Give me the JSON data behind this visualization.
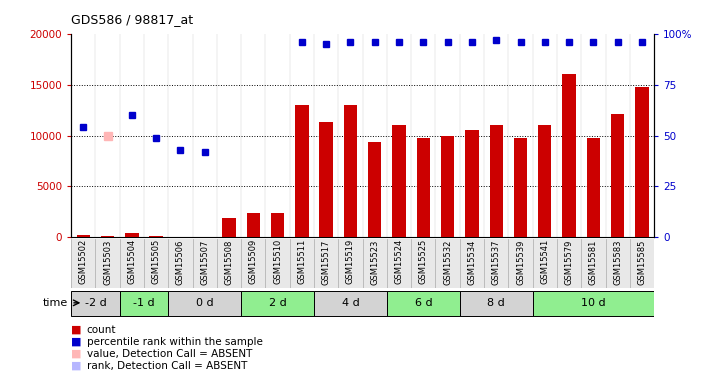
{
  "title": "GDS586 / 98817_at",
  "samples": [
    "GSM15502",
    "GSM15503",
    "GSM15504",
    "GSM15505",
    "GSM15506",
    "GSM15507",
    "GSM15508",
    "GSM15509",
    "GSM15510",
    "GSM15511",
    "GSM15517",
    "GSM15519",
    "GSM15523",
    "GSM15524",
    "GSM15525",
    "GSM15532",
    "GSM15534",
    "GSM15537",
    "GSM15539",
    "GSM15541",
    "GSM15579",
    "GSM15581",
    "GSM15583",
    "GSM15585"
  ],
  "counts": [
    200,
    100,
    400,
    150,
    50,
    50,
    1900,
    2400,
    2400,
    13000,
    11300,
    13000,
    9400,
    11000,
    9800,
    10000,
    10500,
    11000,
    9800,
    11000,
    16000,
    9800,
    12100,
    14800
  ],
  "ranks": [
    10800,
    null,
    12000,
    9800,
    8600,
    8400,
    null,
    null,
    null,
    19200,
    19000,
    19200,
    19200,
    19200,
    19200,
    19200,
    19200,
    19400,
    19200,
    19200,
    19200,
    19200,
    19200,
    19200
  ],
  "absent_value": [
    null,
    10000,
    null,
    null,
    null,
    null,
    null,
    null,
    null,
    null,
    null,
    null,
    null,
    null,
    null,
    null,
    null,
    null,
    null,
    null,
    null,
    null,
    null,
    null
  ],
  "absent_rank": [
    null,
    null,
    null,
    null,
    null,
    null,
    null,
    null,
    null,
    null,
    null,
    null,
    null,
    null,
    null,
    null,
    null,
    null,
    null,
    null,
    null,
    null,
    null,
    null
  ],
  "time_groups": [
    {
      "label": "-2 d",
      "indices": [
        0,
        1
      ],
      "color": "#d3d3d3"
    },
    {
      "label": "-1 d",
      "indices": [
        2,
        3
      ],
      "color": "#90ee90"
    },
    {
      "label": "0 d",
      "indices": [
        4,
        5,
        6
      ],
      "color": "#d3d3d3"
    },
    {
      "label": "2 d",
      "indices": [
        7,
        8,
        9
      ],
      "color": "#90ee90"
    },
    {
      "label": "4 d",
      "indices": [
        10,
        11,
        12
      ],
      "color": "#d3d3d3"
    },
    {
      "label": "6 d",
      "indices": [
        13,
        14,
        15
      ],
      "color": "#90ee90"
    },
    {
      "label": "8 d",
      "indices": [
        16,
        17,
        18
      ],
      "color": "#d3d3d3"
    },
    {
      "label": "10 d",
      "indices": [
        19,
        20,
        21,
        22,
        23
      ],
      "color": "#90ee90"
    }
  ],
  "ylim": [
    0,
    20000
  ],
  "yticks": [
    0,
    5000,
    10000,
    15000,
    20000
  ],
  "ytick_labels_left": [
    "0",
    "5000",
    "10000",
    "15000",
    "20000"
  ],
  "ytick_labels_right": [
    "0",
    "25",
    "50",
    "75",
    "100%"
  ],
  "bar_color": "#cc0000",
  "rank_color": "#0000cc",
  "absent_value_color": "#ffb6b6",
  "absent_rank_color": "#b6b6ff",
  "legend_items": [
    {
      "label": "count",
      "color": "#cc0000"
    },
    {
      "label": "percentile rank within the sample",
      "color": "#0000cc"
    },
    {
      "label": "value, Detection Call = ABSENT",
      "color": "#ffb6b6"
    },
    {
      "label": "rank, Detection Call = ABSENT",
      "color": "#b6b6ff"
    }
  ]
}
